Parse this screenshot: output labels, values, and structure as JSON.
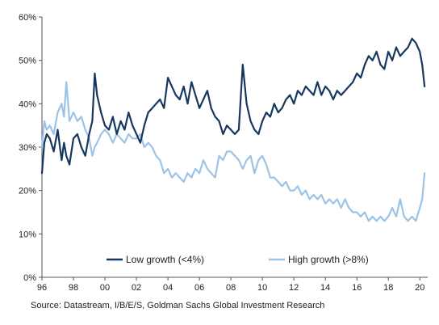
{
  "chart_data": {
    "type": "line",
    "title": "",
    "xlabel": "",
    "ylabel": "",
    "xlim": [
      1996,
      2020.5
    ],
    "ylim": [
      0,
      60
    ],
    "grid": false,
    "legend_position": "bottom-inside",
    "x_tick_labels": [
      "96",
      "98",
      "00",
      "02",
      "04",
      "06",
      "08",
      "10",
      "12",
      "14",
      "16",
      "18",
      "20"
    ],
    "x_tick_values": [
      1996,
      1998,
      2000,
      2002,
      2004,
      2006,
      2008,
      2010,
      2012,
      2014,
      2016,
      2018,
      2020
    ],
    "y_tick_labels": [
      "0%",
      "10%",
      "20%",
      "30%",
      "40%",
      "50%",
      "60%"
    ],
    "y_tick_values": [
      0,
      10,
      20,
      30,
      40,
      50,
      60
    ],
    "series": [
      {
        "name": "Low growth (<4%)",
        "color": "#17375e",
        "x": [
          1996.0,
          1996.15,
          1996.3,
          1996.5,
          1996.75,
          1997.0,
          1997.25,
          1997.4,
          1997.55,
          1997.75,
          1998.0,
          1998.25,
          1998.5,
          1998.75,
          1999.0,
          1999.2,
          1999.35,
          1999.5,
          1999.75,
          2000.0,
          2000.25,
          2000.5,
          2000.75,
          2001.0,
          2001.25,
          2001.5,
          2001.75,
          2002.0,
          2002.25,
          2002.5,
          2002.75,
          2003.0,
          2003.25,
          2003.5,
          2003.75,
          2004.0,
          2004.25,
          2004.5,
          2004.75,
          2005.0,
          2005.25,
          2005.5,
          2005.75,
          2006.0,
          2006.25,
          2006.5,
          2006.75,
          2007.0,
          2007.25,
          2007.5,
          2007.75,
          2008.0,
          2008.25,
          2008.5,
          2008.75,
          2009.0,
          2009.25,
          2009.5,
          2009.75,
          2010.0,
          2010.25,
          2010.5,
          2010.75,
          2011.0,
          2011.25,
          2011.5,
          2011.75,
          2012.0,
          2012.25,
          2012.5,
          2012.75,
          2013.0,
          2013.25,
          2013.5,
          2013.75,
          2014.0,
          2014.25,
          2014.5,
          2014.75,
          2015.0,
          2015.25,
          2015.5,
          2015.75,
          2016.0,
          2016.25,
          2016.5,
          2016.75,
          2017.0,
          2017.25,
          2017.5,
          2017.75,
          2018.0,
          2018.25,
          2018.5,
          2018.75,
          2019.0,
          2019.25,
          2019.5,
          2019.75,
          2020.0,
          2020.15,
          2020.3
        ],
        "values": [
          24,
          31,
          33,
          32,
          29,
          34,
          27,
          31,
          28,
          26,
          32,
          33,
          30,
          28,
          33,
          36,
          47,
          42,
          38,
          35,
          34,
          37,
          33,
          36,
          34,
          38,
          35,
          33,
          31,
          35,
          38,
          39,
          40,
          41,
          39,
          46,
          44,
          42,
          41,
          44,
          40,
          45,
          42,
          39,
          41,
          43,
          39,
          37,
          36,
          33,
          35,
          34,
          33,
          34,
          49,
          40,
          36,
          34,
          33,
          36,
          38,
          37,
          40,
          38,
          39,
          41,
          42,
          40,
          43,
          42,
          44,
          43,
          42,
          45,
          42,
          44,
          43,
          41,
          43,
          42,
          43,
          44,
          45,
          47,
          46,
          49,
          51,
          50,
          52,
          49,
          48,
          52,
          50,
          53,
          51,
          52,
          53,
          55,
          54,
          52,
          49,
          44
        ]
      },
      {
        "name": "High growth (>8%)",
        "color": "#9dc3e6",
        "x": [
          1996.0,
          1996.15,
          1996.3,
          1996.5,
          1996.75,
          1997.0,
          1997.25,
          1997.4,
          1997.55,
          1997.75,
          1998.0,
          1998.25,
          1998.5,
          1998.75,
          1999.0,
          1999.2,
          1999.35,
          1999.5,
          1999.75,
          2000.0,
          2000.25,
          2000.5,
          2000.75,
          2001.0,
          2001.25,
          2001.5,
          2001.75,
          2002.0,
          2002.25,
          2002.5,
          2002.75,
          2003.0,
          2003.25,
          2003.5,
          2003.75,
          2004.0,
          2004.25,
          2004.5,
          2004.75,
          2005.0,
          2005.25,
          2005.5,
          2005.75,
          2006.0,
          2006.25,
          2006.5,
          2006.75,
          2007.0,
          2007.25,
          2007.5,
          2007.75,
          2008.0,
          2008.25,
          2008.5,
          2008.75,
          2009.0,
          2009.25,
          2009.5,
          2009.75,
          2010.0,
          2010.25,
          2010.5,
          2010.75,
          2011.0,
          2011.25,
          2011.5,
          2011.75,
          2012.0,
          2012.25,
          2012.5,
          2012.75,
          2013.0,
          2013.25,
          2013.5,
          2013.75,
          2014.0,
          2014.25,
          2014.5,
          2014.75,
          2015.0,
          2015.25,
          2015.5,
          2015.75,
          2016.0,
          2016.25,
          2016.5,
          2016.75,
          2017.0,
          2017.25,
          2017.5,
          2017.75,
          2018.0,
          2018.25,
          2018.5,
          2018.75,
          2019.0,
          2019.25,
          2019.5,
          2019.75,
          2020.0,
          2020.15,
          2020.3
        ],
        "values": [
          30,
          36,
          34,
          35,
          33,
          38,
          40,
          37,
          45,
          36,
          38,
          36,
          37,
          34,
          32,
          28,
          30,
          31,
          33,
          34,
          33,
          31,
          33,
          32,
          31,
          33,
          32,
          32,
          33,
          30,
          31,
          30,
          28,
          27,
          24,
          25,
          23,
          24,
          23,
          22,
          24,
          23,
          25,
          24,
          27,
          25,
          24,
          23,
          28,
          27,
          29,
          29,
          28,
          27,
          25,
          27,
          28,
          24,
          27,
          28,
          26,
          23,
          23,
          22,
          21,
          22,
          20,
          20,
          21,
          19,
          20,
          18,
          19,
          18,
          19,
          17,
          18,
          17,
          18,
          16,
          18,
          16,
          15,
          15,
          14,
          15,
          13,
          14,
          13,
          14,
          13,
          14,
          16,
          14,
          18,
          14,
          13,
          14,
          13,
          16,
          18,
          24
        ]
      }
    ]
  },
  "source": {
    "text": "Source: Datastream, I/B/E/S, Goldman Sachs Global Investment Research"
  }
}
